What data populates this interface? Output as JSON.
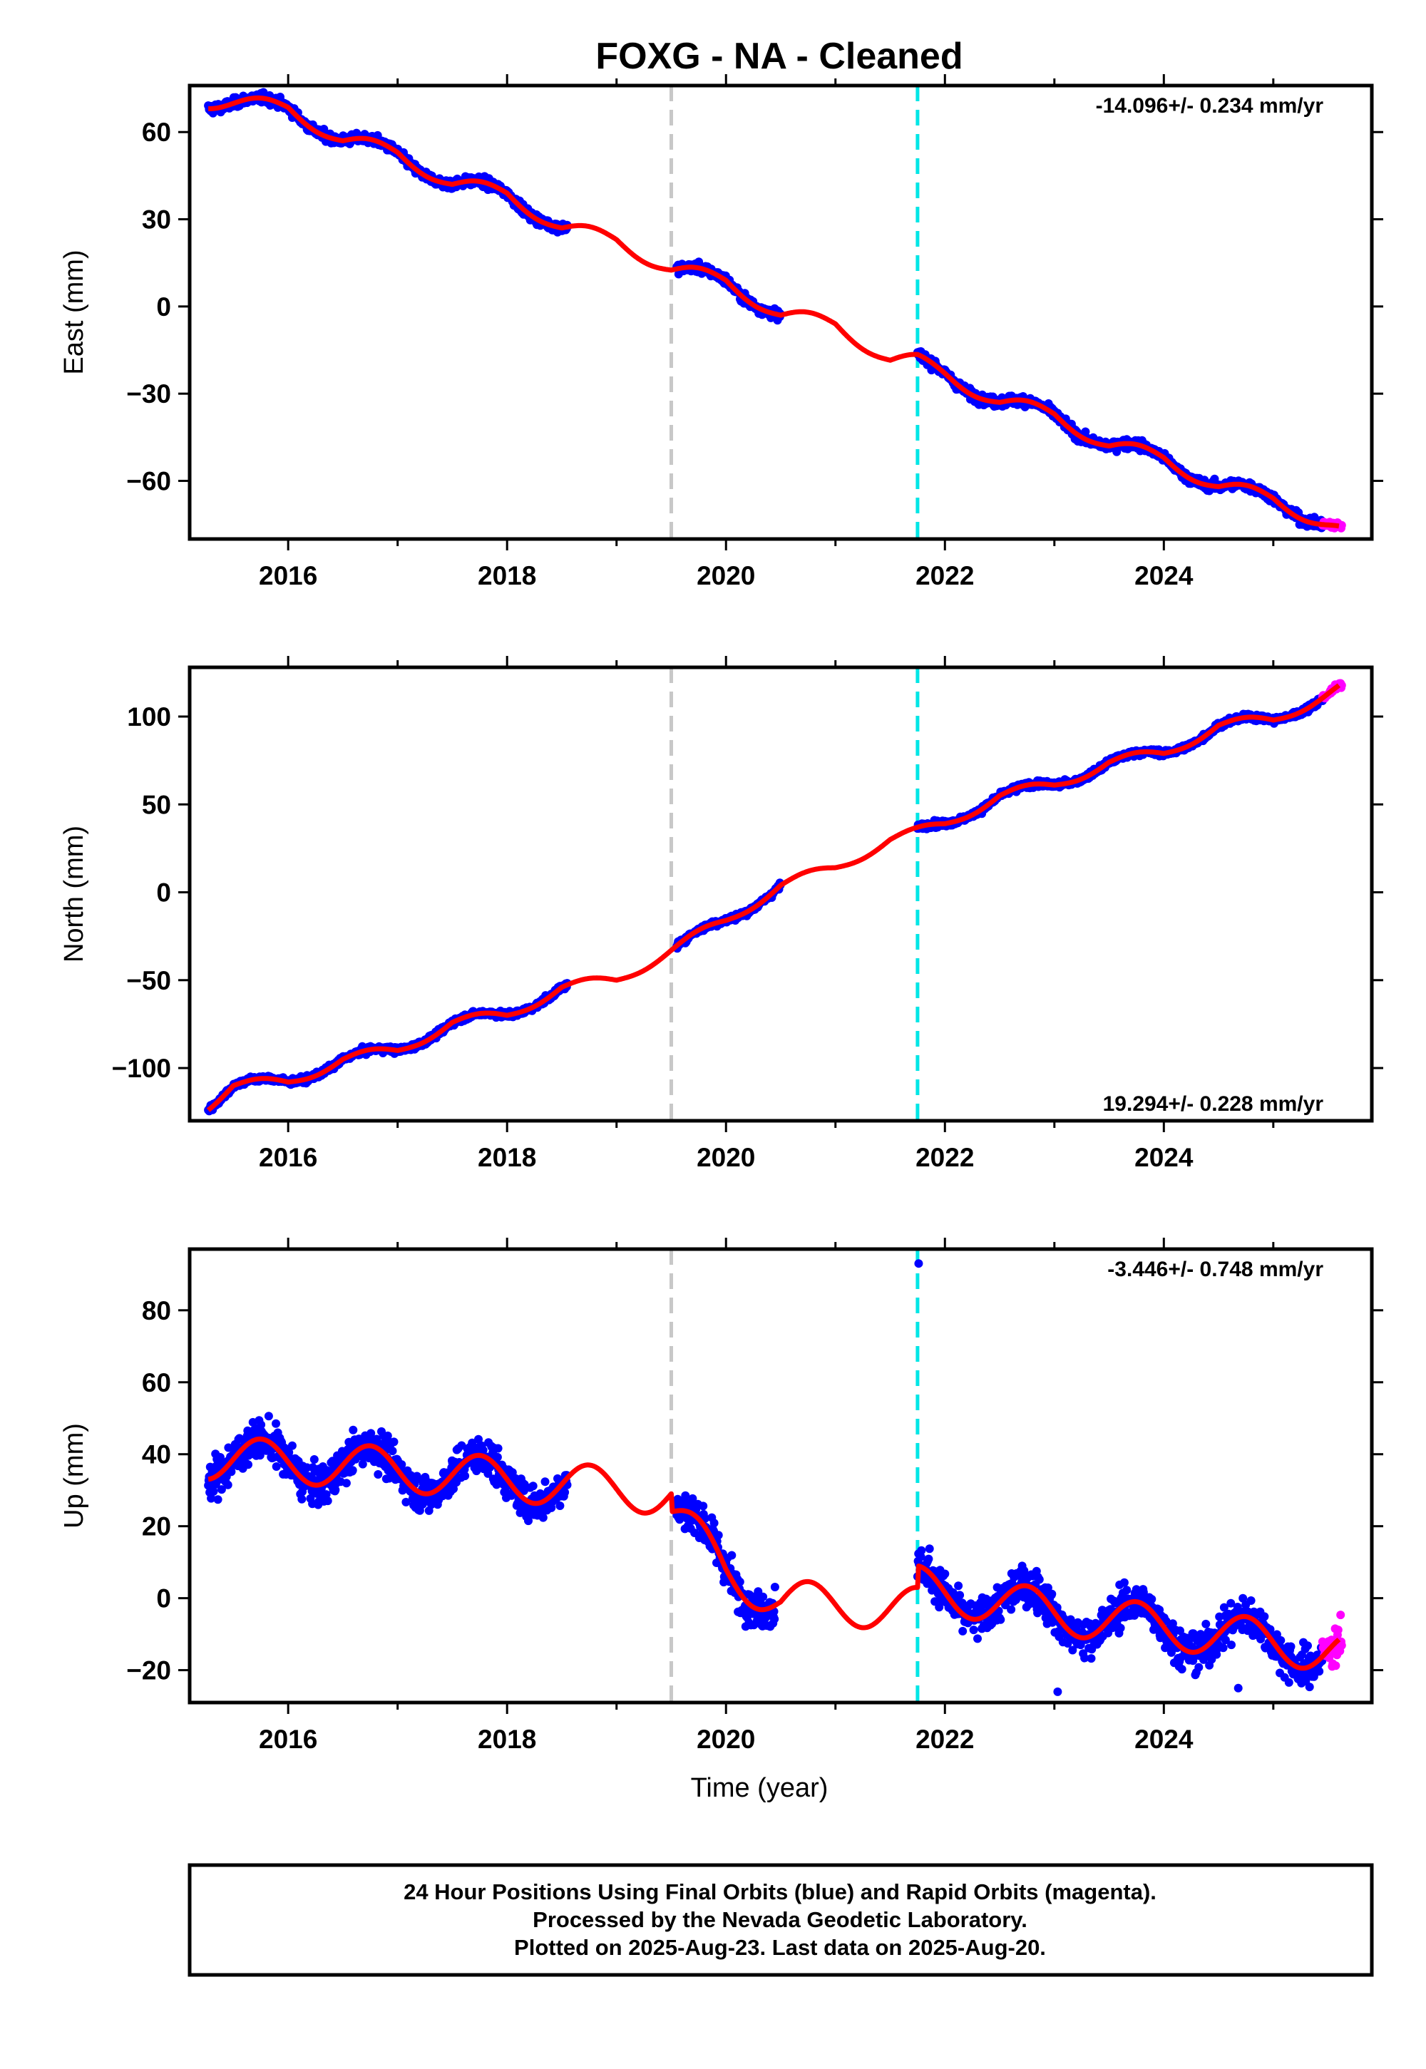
{
  "title": "FOXG  - NA - Cleaned",
  "colors": {
    "final": "#0000ff",
    "rapid": "#ff00ff",
    "model": "#ff0000",
    "equipment_change": "#c8c8c8",
    "earthquake": "#00e6e6"
  },
  "chart_data": [
    {
      "type": "scatter",
      "ylabel": "East (mm)",
      "xlabel": "",
      "rate": "-14.096+/- 0.234 mm/yr",
      "xlim": [
        2015.1,
        2025.9
      ],
      "ylim": [
        -80,
        76
      ],
      "yticks": [
        60,
        30,
        0,
        -30,
        -60
      ],
      "xticks": [
        2016,
        2018,
        2020,
        2022,
        2024
      ],
      "xtick_labels": [
        "2016",
        "2018",
        "2020",
        "2022",
        "2024"
      ],
      "steps": [],
      "seasonal_amp": 2.5,
      "noise": 1.4,
      "model_trend": [
        [
          2015.27,
          70.5
        ],
        [
          2016.0,
          68.5
        ],
        [
          2016.5,
          57.0
        ],
        [
          2017.0,
          53.0
        ],
        [
          2017.5,
          42.0
        ],
        [
          2018.0,
          39.0
        ],
        [
          2018.5,
          27.0
        ],
        [
          2019.0,
          23.0
        ],
        [
          2019.5,
          12.5
        ],
        [
          2020.0,
          9.0
        ],
        [
          2020.5,
          -3.0
        ],
        [
          2021.0,
          -6.0
        ],
        [
          2021.5,
          -18.5
        ],
        [
          2021.75,
          -19.0
        ],
        [
          2022.0,
          -23.0
        ],
        [
          2022.5,
          -33.0
        ],
        [
          2023.0,
          -37.0
        ],
        [
          2023.5,
          -48.0
        ],
        [
          2024.0,
          -52.0
        ],
        [
          2024.5,
          -62.0
        ],
        [
          2025.0,
          -66.0
        ],
        [
          2025.6,
          -77.0
        ]
      ],
      "data_ranges": [
        [
          2015.27,
          2018.55
        ],
        [
          2019.55,
          2020.5
        ],
        [
          2021.75,
          2025.45
        ]
      ],
      "rapid_range": [
        2025.45,
        2025.63
      ],
      "outliers": []
    },
    {
      "type": "scatter",
      "ylabel": "North (mm)",
      "xlabel": "",
      "rate": "19.294+/- 0.228 mm/yr",
      "xlim": [
        2015.1,
        2025.9
      ],
      "ylim": [
        -130,
        128
      ],
      "yticks": [
        100,
        50,
        0,
        -50,
        -100
      ],
      "xticks": [
        2016,
        2018,
        2020,
        2022,
        2024
      ],
      "xtick_labels": [
        "2016",
        "2018",
        "2020",
        "2022",
        "2024"
      ],
      "steps": [
        [
          2019.5,
          9
        ]
      ],
      "seasonal_amp": 3.0,
      "noise": 1.5,
      "model_trend": [
        [
          2015.27,
          -121.0
        ],
        [
          2015.5,
          -110.0
        ],
        [
          2016.0,
          -108.0
        ],
        [
          2016.5,
          -95.0
        ],
        [
          2017.0,
          -90.0
        ],
        [
          2017.5,
          -74.0
        ],
        [
          2018.0,
          -70.0
        ],
        [
          2018.5,
          -54.0
        ],
        [
          2019.0,
          -50.0
        ],
        [
          2019.5,
          -33.0
        ],
        [
          2020.0,
          -16.0
        ],
        [
          2020.5,
          4.0
        ],
        [
          2021.0,
          14.0
        ],
        [
          2021.5,
          30.0
        ],
        [
          2021.75,
          34.0
        ],
        [
          2022.0,
          39.0
        ],
        [
          2022.5,
          55.0
        ],
        [
          2023.0,
          61.0
        ],
        [
          2023.5,
          74.0
        ],
        [
          2024.0,
          79.0
        ],
        [
          2024.5,
          95.0
        ],
        [
          2025.0,
          98.0
        ],
        [
          2025.6,
          116.0
        ]
      ],
      "data_ranges": [
        [
          2015.27,
          2018.55
        ],
        [
          2019.55,
          2020.5
        ],
        [
          2021.75,
          2025.45
        ]
      ],
      "rapid_range": [
        2025.45,
        2025.63
      ],
      "outliers": []
    },
    {
      "type": "scatter",
      "ylabel": "Up (mm)",
      "xlabel": "Time (year)",
      "rate": "-3.446+/- 0.748 mm/yr",
      "xlim": [
        2015.1,
        2025.9
      ],
      "ylim": [
        -29,
        97
      ],
      "yticks": [
        80,
        60,
        40,
        20,
        0,
        -20
      ],
      "xticks": [
        2016,
        2018,
        2020,
        2022,
        2024
      ],
      "xtick_labels": [
        "2016",
        "2018",
        "2020",
        "2022",
        "2024"
      ],
      "steps": [
        [
          2019.5,
          -5
        ],
        [
          2021.75,
          6
        ]
      ],
      "seasonal_amp": 6.0,
      "noise": 4.5,
      "model_trend": [
        [
          2015.27,
          39.0
        ],
        [
          2016.5,
          37.0
        ],
        [
          2018.0,
          33.0
        ],
        [
          2019.5,
          29.0
        ],
        [
          2019.5,
          24.0
        ],
        [
          2020.0,
          8.0
        ],
        [
          2020.5,
          -1.0
        ],
        [
          2021.75,
          -3.0
        ],
        [
          2021.75,
          3.0
        ],
        [
          2023.0,
          -4.0
        ],
        [
          2024.5,
          -10.0
        ],
        [
          2025.6,
          -15.0
        ]
      ],
      "data_ranges": [
        [
          2015.27,
          2018.55
        ],
        [
          2019.55,
          2020.0
        ],
        [
          2020.0,
          2020.45
        ],
        [
          2021.75,
          2025.45
        ]
      ],
      "rapid_range": [
        2025.45,
        2025.63
      ],
      "outliers": [
        [
          2021.76,
          93.0
        ],
        [
          2023.03,
          -26.0
        ],
        [
          2024.68,
          -25.0
        ]
      ]
    }
  ],
  "event_lines": {
    "equipment": 2019.5,
    "earthquake": 2021.75
  },
  "footer": {
    "line1": "24 Hour Positions Using Final Orbits (blue) and Rapid Orbits (magenta).",
    "line2": "Processed by the Nevada Geodetic Laboratory.",
    "line3": "Plotted on 2025-Aug-23. Last data on 2025-Aug-20."
  }
}
